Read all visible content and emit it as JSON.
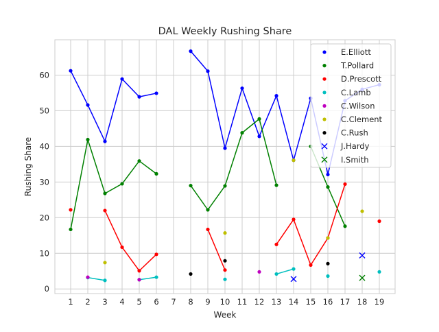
{
  "chart_data": {
    "type": "line",
    "title": "DAL Weekly Rushing Share",
    "xlabel": "Week",
    "ylabel": "Rushing Share",
    "xlim": [
      0.08,
      19.92
    ],
    "ylim": [
      -1.3,
      69.9
    ],
    "xticks": [
      1,
      2,
      3,
      4,
      5,
      6,
      7,
      8,
      9,
      10,
      11,
      12,
      13,
      14,
      15,
      16,
      17,
      18,
      19
    ],
    "yticks": [
      0,
      10,
      20,
      30,
      40,
      50,
      60
    ],
    "grid": true,
    "legend_position": "upper-right",
    "series": [
      {
        "name": "E.Elliott",
        "color": "#0000ff",
        "marker": "dot",
        "points": [
          [
            1,
            61.2
          ],
          [
            2,
            51.6
          ],
          [
            3,
            41.4
          ],
          [
            4,
            58.9
          ],
          [
            5,
            53.9
          ],
          [
            6,
            54.9
          ],
          [
            8,
            66.7
          ],
          [
            9,
            61.1
          ],
          [
            10,
            39.5
          ],
          [
            11,
            56.3
          ],
          [
            12,
            42.8
          ],
          [
            13,
            54.2
          ],
          [
            14,
            36.1
          ],
          [
            15,
            53.5
          ],
          [
            16,
            32.1
          ],
          [
            17,
            52.8
          ],
          [
            18,
            56.0
          ],
          [
            19,
            57.3
          ]
        ]
      },
      {
        "name": "T.Pollard",
        "color": "#008000",
        "marker": "dot",
        "points": [
          [
            1,
            16.7
          ],
          [
            2,
            41.9
          ],
          [
            3,
            26.8
          ],
          [
            4,
            29.5
          ],
          [
            5,
            35.9
          ],
          [
            6,
            32.3
          ],
          [
            8,
            29.0
          ],
          [
            9,
            22.2
          ],
          [
            10,
            28.9
          ],
          [
            11,
            43.8
          ],
          [
            12,
            47.7
          ],
          [
            13,
            29.1
          ],
          [
            15,
            40.0
          ],
          [
            16,
            28.6
          ],
          [
            17,
            17.6
          ]
        ]
      },
      {
        "name": "D.Prescott",
        "color": "#ff0000",
        "marker": "dot",
        "points": [
          [
            1,
            22.2
          ],
          [
            3,
            22.0
          ],
          [
            4,
            11.7
          ],
          [
            5,
            5.1
          ],
          [
            6,
            9.7
          ],
          [
            9,
            16.7
          ],
          [
            10,
            5.3
          ],
          [
            13,
            12.5
          ],
          [
            14,
            19.5
          ],
          [
            15,
            6.7
          ],
          [
            16,
            14.3
          ],
          [
            17,
            29.4
          ],
          [
            19,
            19.0
          ]
        ]
      },
      {
        "name": "C.Lamb",
        "color": "#00bfbf",
        "marker": "dot",
        "points": [
          [
            2,
            3.2
          ],
          [
            3,
            2.4
          ],
          [
            5,
            2.6
          ],
          [
            6,
            3.3
          ],
          [
            10,
            2.7
          ],
          [
            13,
            4.2
          ],
          [
            14,
            5.6
          ],
          [
            16,
            3.6
          ],
          [
            19,
            4.8
          ]
        ]
      },
      {
        "name": "C.Wilson",
        "color": "#bf00bf",
        "marker": "dot",
        "points": [
          [
            2,
            3.3
          ],
          [
            5,
            2.6
          ],
          [
            12,
            4.8
          ]
        ]
      },
      {
        "name": "C.Clement",
        "color": "#bfbf00",
        "marker": "dot",
        "points": [
          [
            3,
            7.4
          ],
          [
            10,
            15.7
          ],
          [
            14,
            36.1
          ],
          [
            16,
            14.3
          ],
          [
            18,
            21.8
          ]
        ]
      },
      {
        "name": "C.Rush",
        "color": "#000000",
        "marker": "dot",
        "points": [
          [
            8,
            4.2
          ],
          [
            10,
            7.9
          ],
          [
            16,
            7.1
          ]
        ]
      },
      {
        "name": "J.Hardy",
        "color": "#0000ff",
        "marker": "x",
        "points": [
          [
            14,
            2.8
          ],
          [
            18,
            9.4
          ]
        ]
      },
      {
        "name": "I.Smith",
        "color": "#008000",
        "marker": "x",
        "points": [
          [
            18,
            3.1
          ]
        ]
      }
    ]
  }
}
